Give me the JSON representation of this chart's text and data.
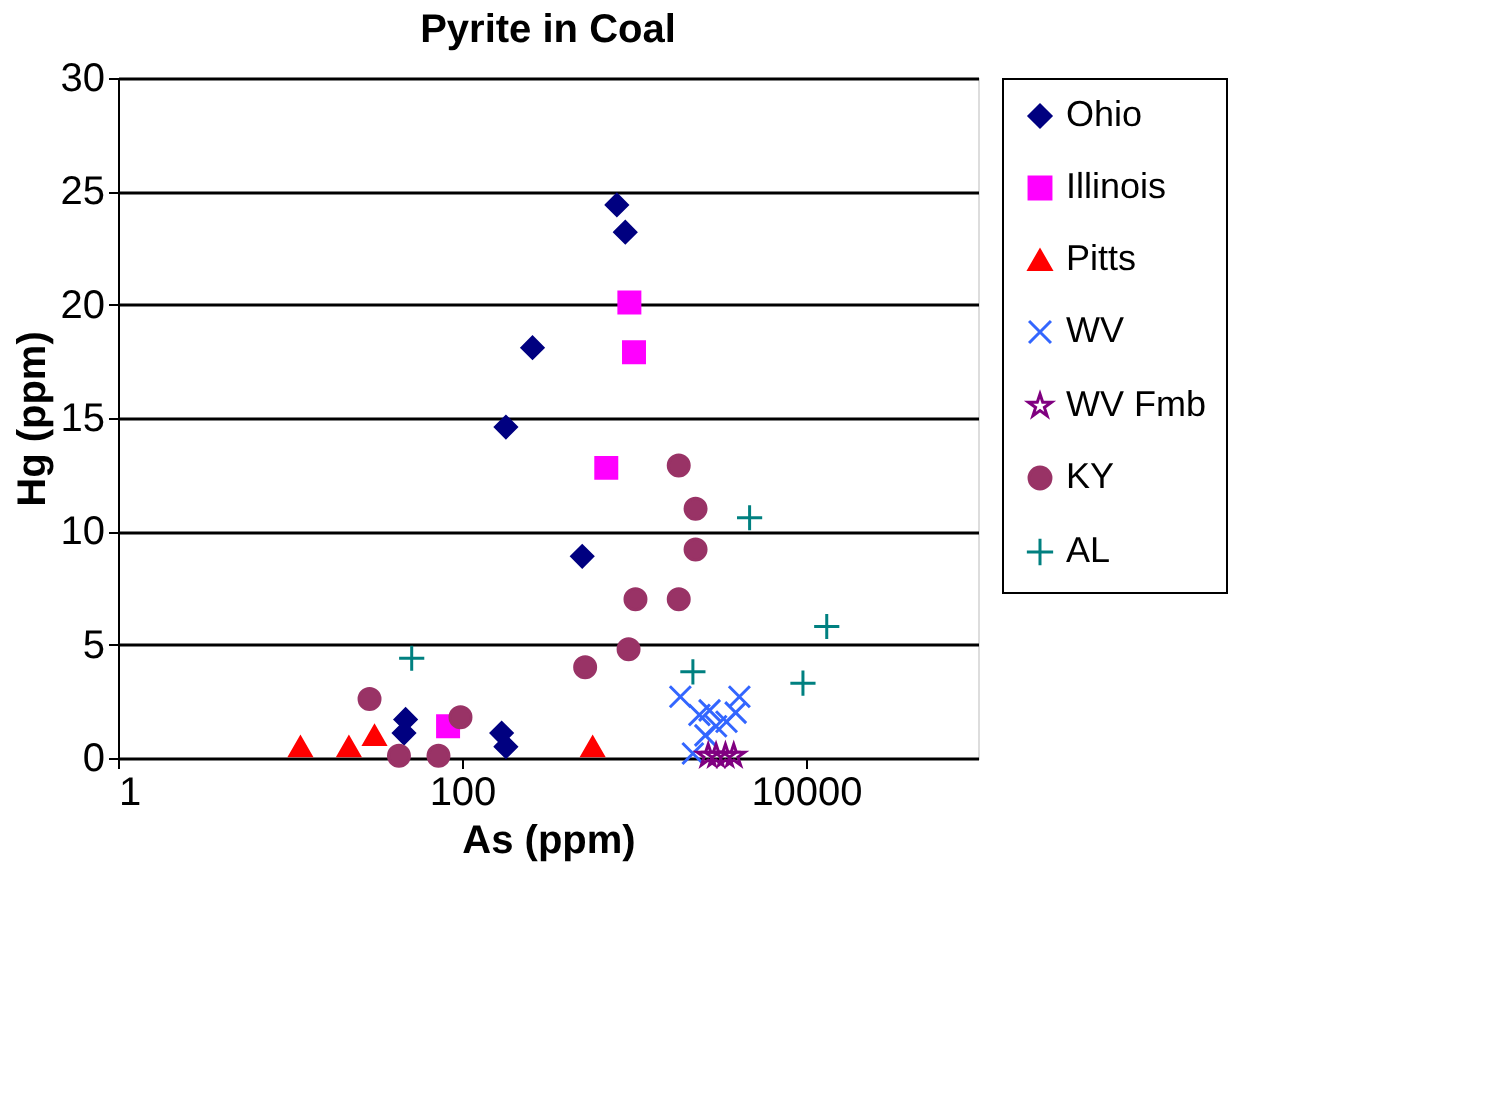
{
  "chart_data": {
    "type": "scatter",
    "title": "Pyrite in Coal",
    "xlabel": "As (ppm)",
    "ylabel": "Hg (ppm)",
    "log": "x",
    "xlim": [
      1,
      100000
    ],
    "xticks": [
      1,
      100,
      10000
    ],
    "ylim": [
      0,
      30
    ],
    "yticks": [
      0,
      5,
      10,
      15,
      20,
      25,
      30
    ],
    "grid": "y",
    "legend": "right",
    "series": [
      {
        "name": "Ohio",
        "color": "#000080",
        "marker": "diamond",
        "x": [
          795,
          890,
          257,
          180,
          500,
          47,
          46,
          170,
          180
        ],
        "values": [
          24.4,
          23.2,
          18.1,
          14.6,
          8.9,
          1.7,
          1.1,
          1.1,
          0.5
        ]
      },
      {
        "name": "Illinois",
        "color": "#ff00ff",
        "marker": "square",
        "x": [
          940,
          1000,
          690,
          93,
          83
        ],
        "values": [
          20.1,
          17.9,
          12.8,
          null,
          1.4
        ]
      },
      {
        "name": "Pitts",
        "color": "#ff0000",
        "marker": "triangle",
        "x": [
          11.5,
          22,
          31,
          575
        ],
        "values": [
          0.5,
          0.5,
          1.0,
          0.5
        ]
      },
      {
        "name": "WV",
        "color": "#3366ff",
        "marker": "cross",
        "x": [
          1860,
          2400,
          3000,
          4100,
          2750,
          2200,
          3450,
          2600,
          3900
        ],
        "values": [
          2.7,
          1.9,
          1.4,
          2.7,
          2.1,
          0.2,
          1.6,
          1.0,
          2.0
        ]
      },
      {
        "name": "WV Fmb",
        "color": "#800080",
        "marker": "star",
        "x": [
          2700,
          3000,
          3400,
          3800
        ],
        "values": [
          0.1,
          0.1,
          0.1,
          0.1
        ]
      },
      {
        "name": "KY",
        "color": "#993366",
        "marker": "circle",
        "x": [
          1820,
          2280,
          2280,
          1020,
          1820,
          930,
          520,
          29,
          98,
          43,
          73
        ],
        "values": [
          12.9,
          11.0,
          9.2,
          7.0,
          7.0,
          4.8,
          4.0,
          2.6,
          1.8,
          0.1,
          0.1
        ]
      },
      {
        "name": "AL",
        "color": "#008080",
        "marker": "plus",
        "x": [
          4700,
          13200,
          51,
          2200,
          9600
        ],
        "values": [
          10.6,
          5.8,
          4.4,
          3.8,
          3.3
        ]
      }
    ]
  }
}
